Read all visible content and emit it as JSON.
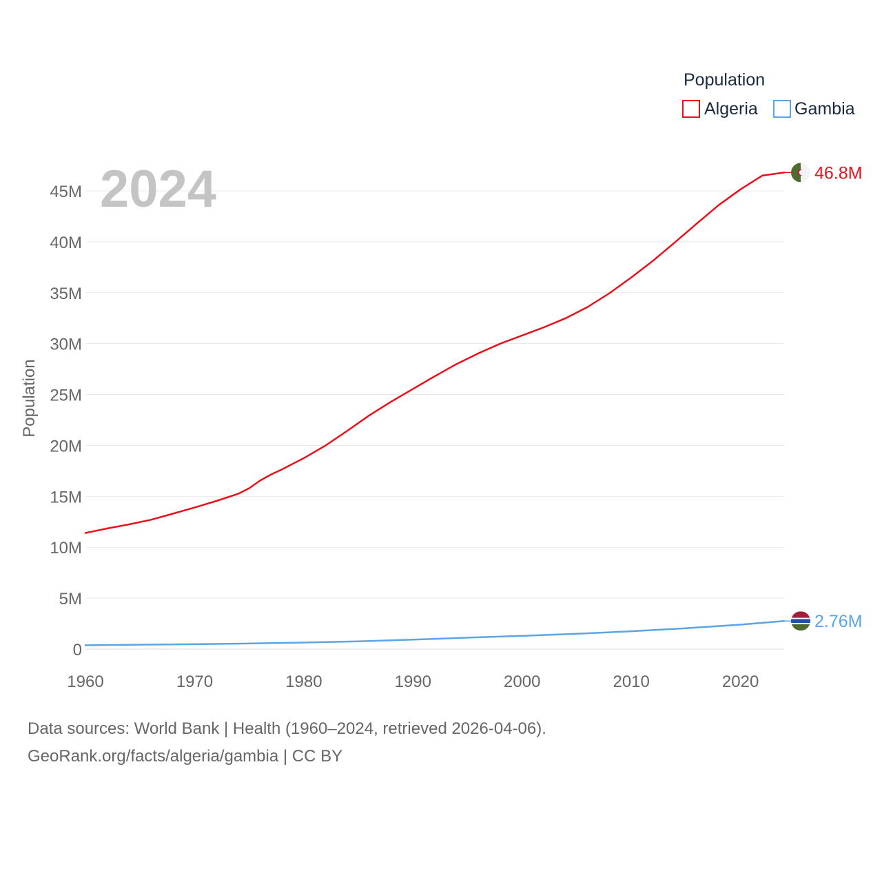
{
  "chart_data": {
    "type": "line",
    "title": "",
    "year_label": "2024",
    "ylabel": "Population",
    "xlabel": "",
    "legend_title": "Population",
    "legend_position": "top-right",
    "xlim": [
      1960,
      2024
    ],
    "ylim": [
      0,
      47000000
    ],
    "x_ticks": [
      1960,
      1970,
      1980,
      1990,
      2000,
      2010,
      2020
    ],
    "x_tick_labels": [
      "1960",
      "1970",
      "1980",
      "1990",
      "2000",
      "2010",
      "2020"
    ],
    "y_ticks": [
      0,
      5000000,
      10000000,
      15000000,
      20000000,
      25000000,
      30000000,
      35000000,
      40000000,
      45000000
    ],
    "y_tick_labels": [
      "0",
      "5M",
      "10M",
      "15M",
      "20M",
      "25M",
      "30M",
      "35M",
      "40M",
      "45M"
    ],
    "grid": true,
    "series": [
      {
        "name": "Algeria",
        "color": "#e8111b",
        "end_label": "46.8M",
        "flag_icon": "algeria-flag-icon",
        "x": [
          1960,
          1962,
          1964,
          1966,
          1968,
          1970,
          1972,
          1974,
          1975,
          1976,
          1977,
          1978,
          1980,
          1982,
          1984,
          1986,
          1988,
          1990,
          1992,
          1994,
          1996,
          1998,
          2000,
          2002,
          2004,
          2006,
          2008,
          2010,
          2012,
          2014,
          2016,
          2018,
          2020,
          2022,
          2024
        ],
        "values": [
          11400000,
          11850000,
          12250000,
          12700000,
          13300000,
          13900000,
          14550000,
          15250000,
          15800000,
          16550000,
          17150000,
          17650000,
          18750000,
          20000000,
          21450000,
          22950000,
          24300000,
          25550000,
          26800000,
          28000000,
          29050000,
          30000000,
          30800000,
          31600000,
          32500000,
          33600000,
          34950000,
          36500000,
          38150000,
          39950000,
          41800000,
          43600000,
          45150000,
          46500000,
          46800000
        ]
      },
      {
        "name": "Gambia",
        "color": "#5ba4e5",
        "end_label": "2.76M",
        "flag_icon": "gambia-flag-icon",
        "x": [
          1960,
          1965,
          1970,
          1975,
          1980,
          1985,
          1990,
          1995,
          2000,
          2005,
          2010,
          2015,
          2020,
          2024
        ],
        "values": [
          380000,
          430000,
          480000,
          550000,
          640000,
          760000,
          930000,
          1120000,
          1300000,
          1500000,
          1750000,
          2050000,
          2400000,
          2760000
        ]
      }
    ]
  },
  "source": {
    "line1": "Data sources: World Bank | Health (1960–2024, retrieved 2026-04-06).",
    "line2": "GeoRank.org/facts/algeria/gambia | CC BY"
  }
}
